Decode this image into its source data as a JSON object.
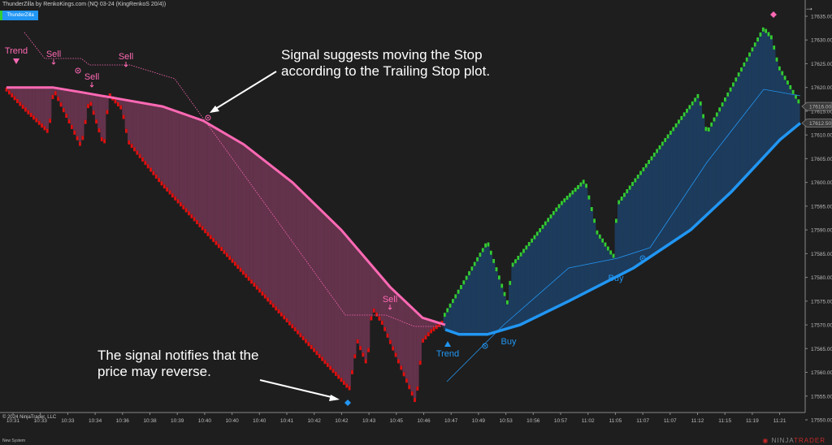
{
  "window": {
    "title": "ThunderZilla by RenkoKings.com (NQ 03-24 (KingRenkoS 20/4))",
    "indicator_button": "ThunderZilla"
  },
  "annotations": {
    "stop_note": "Signal suggests moving the Stop according to the Trailing Stop plot.",
    "reverse_note": "The signal notifies that the price may reverse."
  },
  "signals": {
    "trend": "Trend",
    "sell": "Sell",
    "buy": "Buy"
  },
  "price_axis": {
    "ticks": [
      "17635.00",
      "17630.00",
      "17625.00",
      "17620.00",
      "17615.00",
      "17610.00",
      "17605.00",
      "17600.00",
      "17595.00",
      "17590.00",
      "17585.00",
      "17580.00",
      "17575.00",
      "17570.00",
      "17565.00",
      "17560.00",
      "17555.00",
      "17550.00"
    ],
    "last_price": "17616.00",
    "stop_price": "17612.50"
  },
  "time_axis": [
    "10:31",
    "10:33",
    "10:33",
    "10:34",
    "10:36",
    "10:38",
    "10:39",
    "10:40",
    "10:40",
    "10:40",
    "10:41",
    "10:42",
    "10:42",
    "10:43",
    "10:45",
    "10:46",
    "10:47",
    "10:49",
    "10:53",
    "10:56",
    "10:57",
    "11:02",
    "11:05",
    "11:07",
    "11:07",
    "11:12",
    "11:15",
    "11:19",
    "11:21"
  ],
  "footer": {
    "copyright": "© 2024 NinjaTrader, LLC",
    "system": "New System",
    "logo_a": "NINJA",
    "logo_b": "TRADER"
  },
  "colors": {
    "bear": "#e01010",
    "bull": "#33cc33",
    "bear_stop": "#ff69b4",
    "bull_stop": "#2196f3",
    "bear_fill": "#6b3550",
    "bull_fill": "#1d3f63",
    "background": "#1e1e1e"
  }
}
